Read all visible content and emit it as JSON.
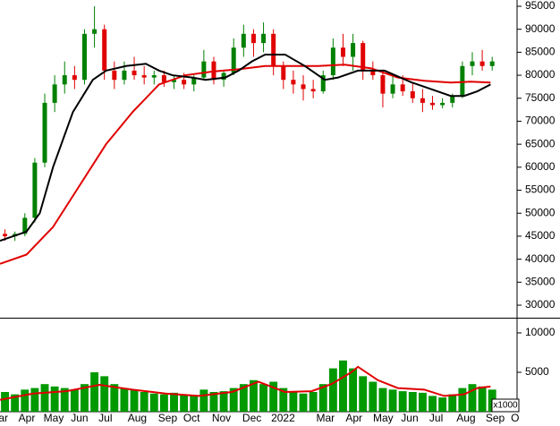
{
  "chart_data": [
    {
      "type": "candlestick",
      "up_color": "#008000",
      "down_color": "#e00000",
      "xlim": [
        0,
        78
      ],
      "ylim": [
        27860,
        96360
      ],
      "yticks": [
        30000,
        35000,
        40000,
        45000,
        50000,
        55000,
        60000,
        65000,
        70000,
        75000,
        80000,
        85000,
        90000,
        95000
      ],
      "x": [
        0.75,
        2.25,
        3.75,
        5.25,
        6.75,
        8.25,
        9.75,
        11.25,
        12.75,
        14.25,
        15.75,
        17.25,
        18.75,
        20.25,
        21.75,
        23.25,
        24.75,
        26.25,
        27.75,
        29.25,
        30.75,
        32.25,
        33.75,
        35.25,
        36.75,
        38.25,
        39.75,
        41.25,
        42.75,
        44.25,
        45.75,
        47.25,
        48.75,
        50.25,
        51.75,
        53.25,
        54.75,
        56.25,
        57.75,
        59.25,
        60.75,
        62.25,
        63.75,
        65.25,
        66.75,
        68.25,
        69.75,
        71.25,
        72.75,
        74.25
      ],
      "open": [
        45500,
        45000,
        45500,
        49000,
        61000,
        74000,
        78000,
        80000,
        79000,
        89000,
        90000,
        81000,
        79000,
        81000,
        80000,
        79500,
        80000,
        78500,
        79000,
        78000,
        79500,
        83000,
        79000,
        80500,
        86000,
        89000,
        87000,
        89000,
        82000,
        79000,
        78000,
        77000,
        76500,
        80000,
        86000,
        84000,
        87000,
        81000,
        80000,
        76000,
        78000,
        76500,
        75000,
        74000,
        73500,
        74000,
        75500,
        82000,
        83000,
        82000
      ],
      "high": [
        46500,
        46000,
        50000,
        62000,
        76000,
        80000,
        83000,
        82000,
        90000,
        95000,
        91000,
        83000,
        83000,
        84000,
        82000,
        81000,
        81000,
        80000,
        80500,
        80000,
        85500,
        84000,
        81000,
        88000,
        91000,
        90000,
        91500,
        90000,
        83000,
        81000,
        80000,
        79000,
        81000,
        88000,
        89000,
        89000,
        87500,
        83000,
        81000,
        80000,
        80000,
        78500,
        77000,
        75500,
        75000,
        76000,
        83000,
        85000,
        85500,
        84000
      ],
      "low": [
        44000,
        44000,
        45000,
        48000,
        60000,
        72000,
        76000,
        77000,
        78000,
        86000,
        79000,
        77000,
        78000,
        79000,
        78000,
        78000,
        77500,
        77000,
        77000,
        76500,
        79000,
        78000,
        77500,
        80000,
        84000,
        84000,
        85000,
        80000,
        77000,
        76000,
        74500,
        75000,
        76000,
        79000,
        82000,
        81000,
        79000,
        79000,
        73000,
        75000,
        75500,
        74000,
        72000,
        72500,
        72800,
        73000,
        75000,
        80000,
        81000,
        81000
      ],
      "close": [
        45000,
        45500,
        49000,
        61000,
        74000,
        78000,
        80000,
        79000,
        89000,
        90000,
        81000,
        79000,
        81000,
        80000,
        79500,
        80000,
        78500,
        79000,
        78000,
        79500,
        83000,
        79000,
        80500,
        86000,
        89000,
        87000,
        89000,
        82000,
        79000,
        78000,
        77000,
        76500,
        80000,
        86000,
        84000,
        87000,
        81000,
        80000,
        76000,
        78000,
        76500,
        75000,
        74000,
        73500,
        74000,
        75500,
        82000,
        83000,
        82000,
        83000
      ],
      "lines": [
        {
          "color": "#e00000",
          "x": [
            0,
            4,
            8,
            12,
            16,
            20,
            24,
            28,
            32,
            36,
            40,
            44,
            48,
            52,
            56,
            60,
            64,
            68,
            71,
            74
          ],
          "values": [
            39000,
            41000,
            47000,
            56000,
            65000,
            72000,
            78000,
            80000,
            80800,
            81300,
            82000,
            82000,
            82000,
            82300,
            81500,
            79500,
            78800,
            78400,
            78600,
            78400
          ]
        },
        {
          "color": "#000000",
          "x": [
            0,
            4,
            6,
            8,
            11,
            14,
            16,
            19,
            22,
            24,
            26,
            29,
            31,
            34,
            36,
            38,
            40,
            43,
            46,
            49,
            51,
            54,
            58,
            62,
            66,
            68,
            70,
            72,
            74
          ],
          "values": [
            44000,
            46000,
            50000,
            60000,
            72000,
            79000,
            81000,
            82000,
            82500,
            81000,
            80000,
            79500,
            79000,
            79500,
            81000,
            83000,
            84500,
            84500,
            82000,
            79000,
            79500,
            81000,
            81000,
            78500,
            76500,
            75500,
            75500,
            76500,
            78000
          ]
        }
      ]
    },
    {
      "type": "bar",
      "color": "#009900",
      "xlim": [
        0,
        78
      ],
      "ylim": [
        0,
        11700
      ],
      "yticks": [
        5000,
        10000
      ],
      "unit_label": "x1000",
      "xticks": [
        {
          "value": 0.5,
          "label": "ar"
        },
        {
          "value": 4.05,
          "label": "Apr"
        },
        {
          "value": 8.1,
          "label": "May"
        },
        {
          "value": 12.0,
          "label": "Jun"
        },
        {
          "value": 15.9,
          "label": "Jul"
        },
        {
          "value": 20.7,
          "label": "Aug"
        },
        {
          "value": 25.3,
          "label": "Sep"
        },
        {
          "value": 28.9,
          "label": "Oct"
        },
        {
          "value": 33.4,
          "label": "Nov"
        },
        {
          "value": 38.0,
          "label": "Dec"
        },
        {
          "value": 42.7,
          "label": "2022"
        },
        {
          "value": 49.1,
          "label": "Mar"
        },
        {
          "value": 53.4,
          "label": "Apr"
        },
        {
          "value": 57.8,
          "label": "May"
        },
        {
          "value": 61.8,
          "label": "Jun"
        },
        {
          "value": 65.8,
          "label": "Jul"
        },
        {
          "value": 70.3,
          "label": "Aug"
        },
        {
          "value": 74.7,
          "label": "Sep"
        },
        {
          "value": 77.7,
          "label": "O"
        }
      ],
      "x": [
        0.75,
        2.25,
        3.75,
        5.25,
        6.75,
        8.25,
        9.75,
        11.25,
        12.75,
        14.25,
        15.75,
        17.25,
        18.75,
        20.25,
        21.75,
        23.25,
        24.75,
        26.25,
        27.75,
        29.25,
        30.75,
        32.25,
        33.75,
        35.25,
        36.75,
        38.25,
        39.75,
        41.25,
        42.75,
        44.25,
        45.75,
        47.25,
        48.75,
        50.25,
        51.75,
        53.25,
        54.75,
        56.25,
        57.75,
        59.25,
        60.75,
        62.25,
        63.75,
        65.25,
        66.75,
        68.25,
        69.75,
        71.25,
        72.75,
        74.25
      ],
      "values": [
        2500,
        2200,
        2800,
        3000,
        3500,
        3200,
        3000,
        2800,
        3500,
        5000,
        4500,
        3500,
        3000,
        2800,
        2500,
        2300,
        2200,
        2400,
        2200,
        2000,
        2800,
        2500,
        2600,
        3000,
        3500,
        4000,
        3500,
        3800,
        3000,
        2500,
        2300,
        2500,
        3500,
        5500,
        6500,
        5500,
        4500,
        3800,
        3000,
        2800,
        2600,
        2500,
        2400,
        2000,
        1800,
        2200,
        3000,
        3500,
        3200,
        2800
      ],
      "lines": [
        {
          "color": "#e00000",
          "x": [
            0,
            5,
            10,
            15,
            20,
            25,
            30,
            35,
            39,
            43,
            47,
            50,
            53,
            54,
            57,
            60,
            64,
            67,
            70,
            72,
            74
          ],
          "values": [
            1500,
            2300,
            2600,
            3400,
            2800,
            2300,
            2000,
            2500,
            3800,
            2500,
            2600,
            3500,
            5000,
            5700,
            4000,
            3000,
            2800,
            2000,
            2200,
            3000,
            3200
          ]
        }
      ]
    }
  ]
}
